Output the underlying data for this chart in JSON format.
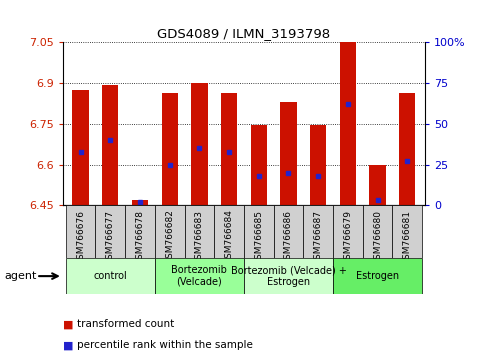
{
  "title": "GDS4089 / ILMN_3193798",
  "samples": [
    "GSM766676",
    "GSM766677",
    "GSM766678",
    "GSM766682",
    "GSM766683",
    "GSM766684",
    "GSM766685",
    "GSM766686",
    "GSM766687",
    "GSM766679",
    "GSM766680",
    "GSM766681"
  ],
  "transformed_counts": [
    6.875,
    6.895,
    6.47,
    6.865,
    6.9,
    6.865,
    6.745,
    6.83,
    6.745,
    7.05,
    6.6,
    6.865
  ],
  "percentile_ranks": [
    33,
    40,
    2,
    25,
    35,
    33,
    18,
    20,
    18,
    62,
    3,
    27
  ],
  "y_min": 6.45,
  "y_max": 7.05,
  "y_ticks": [
    6.45,
    6.6,
    6.75,
    6.9,
    7.05
  ],
  "y_right_ticks": [
    0,
    25,
    50,
    75,
    100
  ],
  "bar_color": "#cc1100",
  "dot_color": "#2222cc",
  "bar_width": 0.55,
  "groups": [
    {
      "label": "control",
      "start": 0,
      "end": 3,
      "color": "#ccffcc"
    },
    {
      "label": "Bortezomib\n(Velcade)",
      "start": 3,
      "end": 6,
      "color": "#99ff99"
    },
    {
      "label": "Bortezomib (Velcade) +\nEstrogen",
      "start": 6,
      "end": 9,
      "color": "#ccffcc"
    },
    {
      "label": "Estrogen",
      "start": 9,
      "end": 12,
      "color": "#66ee66"
    }
  ],
  "legend_bar_label": "transformed count",
  "legend_dot_label": "percentile rank within the sample",
  "xlabel_agent": "agent"
}
